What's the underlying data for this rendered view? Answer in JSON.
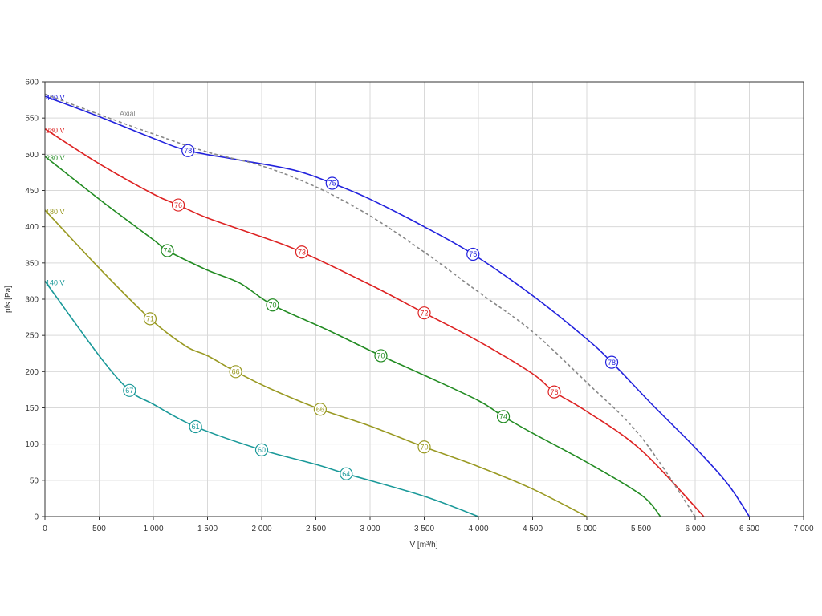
{
  "chart_data": {
    "type": "line",
    "title": "",
    "xlabel": "V [m³/h]",
    "ylabel": "pfs [Pa]",
    "xlim": [
      0,
      7000
    ],
    "ylim": [
      0,
      600
    ],
    "grid": true,
    "x_ticks": [
      "0",
      "500",
      "1 000",
      "1 500",
      "2 000",
      "2 500",
      "3 000",
      "3 500",
      "4 000",
      "4 500",
      "5 000",
      "5 500",
      "6 000",
      "6 500",
      "7 000"
    ],
    "y_ticks": [
      "0",
      "50",
      "100",
      "150",
      "200",
      "250",
      "300",
      "350",
      "400",
      "450",
      "500",
      "550",
      "600"
    ],
    "series": [
      {
        "name": "400 V",
        "color": "#2222dd",
        "dashed": false,
        "points": [
          [
            0,
            580
          ],
          [
            500,
            552
          ],
          [
            1000,
            522
          ],
          [
            1320,
            505
          ],
          [
            1800,
            492
          ],
          [
            2300,
            478
          ],
          [
            2650,
            460
          ],
          [
            3000,
            438
          ],
          [
            3500,
            400
          ],
          [
            3950,
            362
          ],
          [
            4500,
            305
          ],
          [
            5000,
            245
          ],
          [
            5230,
            213
          ],
          [
            5600,
            155
          ],
          [
            6000,
            95
          ],
          [
            6300,
            45
          ],
          [
            6500,
            0
          ]
        ],
        "markers": [
          {
            "x": 1320,
            "y": 505,
            "label": "78"
          },
          {
            "x": 2650,
            "y": 460,
            "label": "75"
          },
          {
            "x": 3950,
            "y": 362,
            "label": "75"
          },
          {
            "x": 5230,
            "y": 213,
            "label": "78"
          }
        ]
      },
      {
        "name": "280 V",
        "color": "#dd2222",
        "dashed": false,
        "points": [
          [
            0,
            535
          ],
          [
            500,
            487
          ],
          [
            1000,
            445
          ],
          [
            1230,
            430
          ],
          [
            1500,
            412
          ],
          [
            2000,
            386
          ],
          [
            2370,
            365
          ],
          [
            3000,
            320
          ],
          [
            3500,
            281
          ],
          [
            4000,
            242
          ],
          [
            4500,
            197
          ],
          [
            4700,
            172
          ],
          [
            5000,
            145
          ],
          [
            5500,
            92
          ],
          [
            6080,
            0
          ]
        ],
        "markers": [
          {
            "x": 1230,
            "y": 430,
            "label": "76"
          },
          {
            "x": 2370,
            "y": 365,
            "label": "73"
          },
          {
            "x": 3500,
            "y": 281,
            "label": "72"
          },
          {
            "x": 4700,
            "y": 172,
            "label": "76"
          }
        ]
      },
      {
        "name": "230 V",
        "color": "#228b22",
        "dashed": false,
        "points": [
          [
            0,
            497
          ],
          [
            500,
            438
          ],
          [
            1000,
            382
          ],
          [
            1130,
            367
          ],
          [
            1500,
            340
          ],
          [
            1800,
            322
          ],
          [
            2100,
            292
          ],
          [
            2600,
            258
          ],
          [
            3100,
            222
          ],
          [
            3500,
            195
          ],
          [
            4000,
            160
          ],
          [
            4230,
            138
          ],
          [
            4500,
            115
          ],
          [
            5000,
            75
          ],
          [
            5500,
            30
          ],
          [
            5680,
            0
          ]
        ],
        "markers": [
          {
            "x": 1130,
            "y": 367,
            "label": "74"
          },
          {
            "x": 2100,
            "y": 292,
            "label": "70"
          },
          {
            "x": 3100,
            "y": 222,
            "label": "70"
          },
          {
            "x": 4230,
            "y": 138,
            "label": "74"
          }
        ]
      },
      {
        "name": "180 V",
        "color": "#999922",
        "dashed": false,
        "points": [
          [
            0,
            423
          ],
          [
            500,
            343
          ],
          [
            970,
            273
          ],
          [
            1300,
            235
          ],
          [
            1500,
            222
          ],
          [
            1760,
            200
          ],
          [
            2100,
            175
          ],
          [
            2540,
            148
          ],
          [
            3000,
            125
          ],
          [
            3500,
            96
          ],
          [
            4000,
            69
          ],
          [
            4500,
            38
          ],
          [
            5000,
            0
          ]
        ],
        "markers": [
          {
            "x": 970,
            "y": 273,
            "label": "71"
          },
          {
            "x": 1760,
            "y": 200,
            "label": "66"
          },
          {
            "x": 2540,
            "y": 148,
            "label": "66"
          },
          {
            "x": 3500,
            "y": 96,
            "label": "70"
          }
        ]
      },
      {
        "name": "140 V",
        "color": "#1a9999",
        "dashed": false,
        "points": [
          [
            0,
            325
          ],
          [
            500,
            222
          ],
          [
            780,
            174
          ],
          [
            1000,
            155
          ],
          [
            1390,
            124
          ],
          [
            2000,
            92
          ],
          [
            2500,
            72
          ],
          [
            2780,
            59
          ],
          [
            3500,
            28
          ],
          [
            4000,
            0
          ]
        ],
        "markers": [
          {
            "x": 780,
            "y": 174,
            "label": "67"
          },
          {
            "x": 1390,
            "y": 124,
            "label": "61"
          },
          {
            "x": 2000,
            "y": 92,
            "label": "60"
          },
          {
            "x": 2780,
            "y": 59,
            "label": "64"
          }
        ]
      },
      {
        "name": "Axial",
        "color": "#888888",
        "dashed": true,
        "points": [
          [
            0,
            583
          ],
          [
            500,
            555
          ],
          [
            1000,
            528
          ],
          [
            1500,
            503
          ],
          [
            2000,
            484
          ],
          [
            2500,
            455
          ],
          [
            3000,
            415
          ],
          [
            3500,
            365
          ],
          [
            4000,
            310
          ],
          [
            4500,
            255
          ],
          [
            5000,
            185
          ],
          [
            5500,
            110
          ],
          [
            6000,
            0
          ]
        ],
        "markers": []
      }
    ]
  }
}
